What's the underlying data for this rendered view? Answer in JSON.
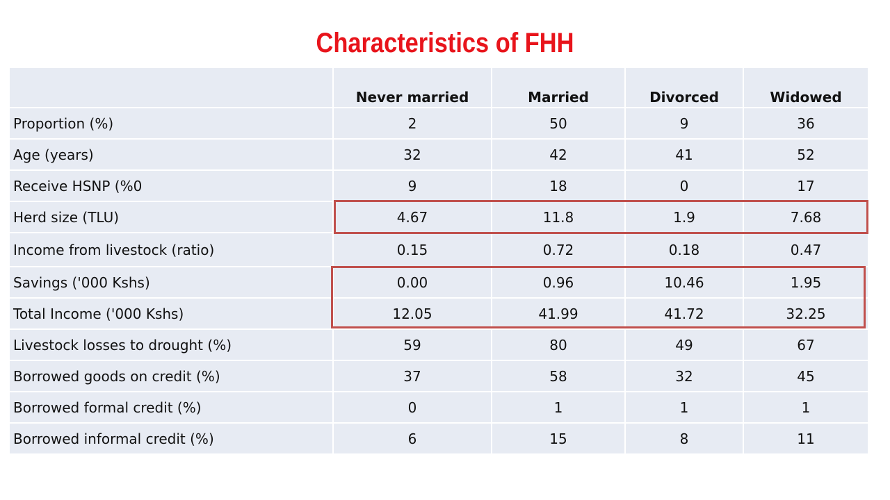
{
  "title": "Characteristics of FHH",
  "columns": [
    "",
    "Never married",
    "Married",
    "Divorced",
    "Widowed"
  ],
  "rows": [
    {
      "label": "Proportion (%)",
      "values": [
        "2",
        "50",
        "9",
        "36"
      ]
    },
    {
      "label": "Age (years)",
      "values": [
        "32",
        "42",
        "41",
        "52"
      ]
    },
    {
      "label": "Receive HSNP (%0",
      "values": [
        "9",
        "18",
        "0",
        "17"
      ]
    },
    {
      "label": "Herd size (TLU)",
      "values": [
        "4.67",
        "11.8",
        "1.9",
        "7.68"
      ]
    },
    {
      "label": "Income from livestock (ratio)",
      "values": [
        "0.15",
        "0.72",
        "0.18",
        "0.47"
      ]
    },
    {
      "label": "Savings ('000 Kshs)",
      "values": [
        "0.00",
        "0.96",
        "10.46",
        "1.95"
      ]
    },
    {
      "label": "Total Income ('000 Kshs)",
      "values": [
        "12.05",
        "41.99",
        "41.72",
        "32.25"
      ]
    },
    {
      "label": "Livestock losses to drought (%)",
      "values": [
        "59",
        "80",
        "49",
        "67"
      ]
    },
    {
      "label": "Borrowed goods on credit (%)",
      "values": [
        "37",
        "58",
        "32",
        "45"
      ]
    },
    {
      "label": "Borrowed formal credit (%)",
      "values": [
        "0",
        "1",
        "1",
        "1"
      ]
    },
    {
      "label": "Borrowed informal credit (%)",
      "values": [
        "6",
        "15",
        "8",
        "11"
      ]
    }
  ],
  "highlight_color": "#c0504d",
  "highlights": [
    {
      "rows": [
        "Herd size (TLU)"
      ]
    },
    {
      "rows": [
        "Savings ('000 Kshs)",
        "Total Income ('000 Kshs)"
      ]
    }
  ]
}
